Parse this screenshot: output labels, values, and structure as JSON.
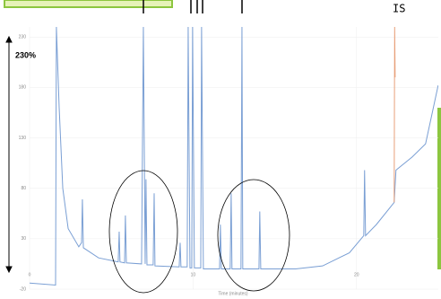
{
  "chart_data": {
    "type": "line",
    "annotations": [
      "IS",
      "230%"
    ],
    "x_label": "Time (minutes)",
    "series": [
      {
        "color": "#7a9fd4",
        "x": [
          0,
          1.59,
          1.64,
          1.81,
          2.03,
          2.36,
          3.01,
          3.18,
          3.23,
          3.29,
          4.22,
          5.42,
          5.48,
          5.53,
          5.81,
          5.86,
          5.92,
          6.85,
          6.96,
          7.07,
          7.12,
          7.18,
          7.56,
          7.62,
          7.67,
          9.15,
          9.21,
          9.26,
          9.64,
          9.7,
          9.81,
          9.92,
          9.97,
          10.08,
          10.47,
          10.52,
          10.63,
          11.62,
          11.67,
          11.73,
          12.27,
          12.33,
          12.38,
          12.93,
          12.99,
          13.04,
          14.03,
          14.08,
          14.14,
          16.27,
          17.92,
          19.56,
          20.44,
          20.49,
          20.55,
          21.21,
          22.3,
          22.41,
          23.4,
          24.22,
          24.99
        ],
        "values": [
          -14,
          -16,
          240,
          160,
          80,
          40,
          22,
          26,
          69,
          21,
          11,
          7,
          37,
          7,
          6,
          53,
          6,
          5,
          240,
          5,
          89,
          4,
          4,
          75,
          3,
          2,
          26,
          2,
          2,
          240,
          1,
          1,
          240,
          1,
          1,
          240,
          0,
          0,
          44,
          0,
          0,
          75,
          0,
          0,
          240,
          0,
          0,
          57,
          0,
          0,
          3,
          16,
          33,
          98,
          33,
          44,
          66,
          98,
          111,
          124,
          182
        ]
      },
      {
        "color": "#e8a07a",
        "x": [
          22.3,
          22.33,
          22.36
        ],
        "values": [
          66,
          240,
          190
        ]
      }
    ],
    "xlim": [
      0,
      25
    ],
    "xticks": [
      0,
      10,
      20
    ],
    "ylim": [
      -20,
      240
    ],
    "yticks": [
      -20,
      30,
      80,
      130,
      180,
      230
    ],
    "grid": true
  }
}
